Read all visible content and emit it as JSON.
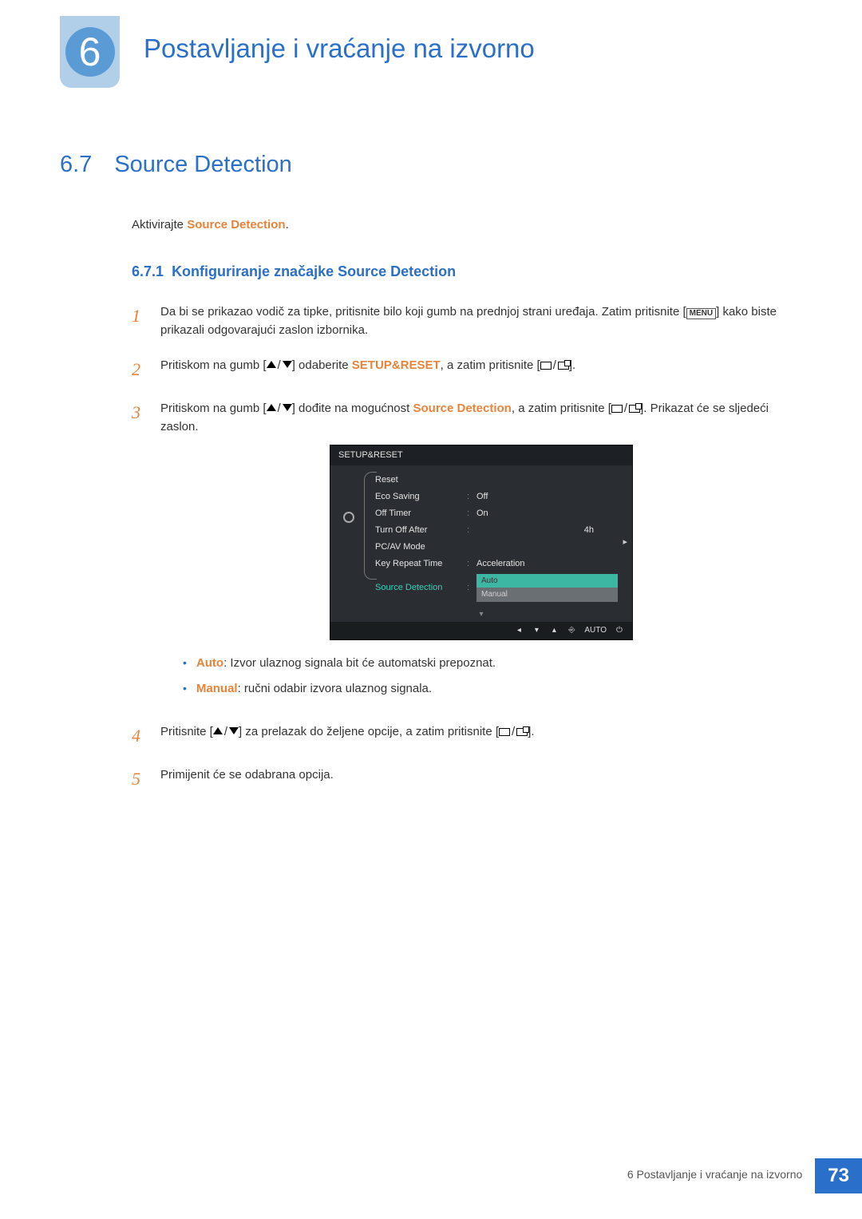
{
  "chapter": {
    "number": "6",
    "title": "Postavljanje i vraćanje na izvorno"
  },
  "section": {
    "number": "6.7",
    "title": "Source Detection"
  },
  "intro": {
    "prefix": "Aktivirajte ",
    "highlight": "Source Detection",
    "suffix": "."
  },
  "subsection": {
    "number": "6.7.1",
    "title": "Konfiguriranje značajke Source Detection"
  },
  "steps": {
    "s1": {
      "num": "1",
      "text_a": "Da bi se prikazao vodič za tipke, pritisnite bilo koji gumb na prednjoj strani uređaja. Zatim pritisnite [",
      "menu": "MENU",
      "text_b": "] kako biste prikazali odgovarajući zaslon izbornika."
    },
    "s2": {
      "num": "2",
      "text_a": "Pritiskom na gumb [",
      "text_b": "] odaberite ",
      "hl": "SETUP&RESET",
      "text_c": ", a zatim pritisnite [",
      "text_d": "]."
    },
    "s3": {
      "num": "3",
      "text_a": "Pritiskom na gumb [",
      "text_b": "] dođite na mogućnost ",
      "hl": "Source Detection",
      "text_c": ", a zatim pritisnite [",
      "text_d": "]. Prikazat će se sljedeći zaslon."
    },
    "s4": {
      "num": "4",
      "text_a": "Pritisnite [",
      "text_b": "] za prelazak do željene opcije, a zatim pritisnite [",
      "text_c": "]."
    },
    "s5": {
      "num": "5",
      "text": "Primijenit će se odabrana opcija."
    }
  },
  "osd": {
    "header": "SETUP&RESET",
    "rows": [
      {
        "label": "Reset",
        "val": ""
      },
      {
        "label": "Eco Saving",
        "val": "Off"
      },
      {
        "label": "Off Timer",
        "val": "On"
      },
      {
        "label": "Turn Off After",
        "val": "4h"
      },
      {
        "label": "PC/AV Mode",
        "val": ""
      },
      {
        "label": "Key Repeat Time",
        "val": "Acceleration"
      }
    ],
    "highlight_row": {
      "label": "Source Detection"
    },
    "options": [
      "Auto",
      "Manual"
    ],
    "footer_auto": "AUTO",
    "colors": {
      "bg": "#2a2e33",
      "header_bg": "#1d2024",
      "highlight_text": "#38d0b8",
      "option_bg": "#3bb7a3",
      "option_dim_bg": "#6a6f74"
    }
  },
  "bullets": {
    "b1": {
      "hl": "Auto",
      "text": ": Izvor ulaznog signala bit će automatski prepoznat."
    },
    "b2": {
      "hl": "Manual",
      "text": ": ručni odabir izvora ulaznog signala."
    }
  },
  "footer": {
    "text": "6 Postavljanje i vraćanje na izvorno",
    "page": "73"
  },
  "colors": {
    "brand_blue": "#2a6fc9",
    "accent_orange": "#e8833a"
  }
}
